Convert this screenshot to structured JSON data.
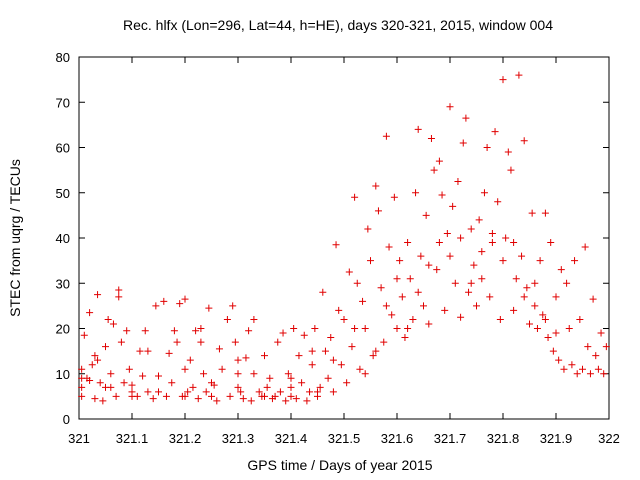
{
  "chart_data": {
    "type": "scatter",
    "title": "Rec. hlfx (Lon=296, Lat=44, h=HE), days 320-321, 2015, window 004",
    "xlabel": "GPS time / Days of year 2015",
    "ylabel": "STEC from uqrg / TECUs",
    "xlim": [
      321,
      322
    ],
    "ylim": [
      0,
      80
    ],
    "xticks": [
      "321",
      "321.1",
      "321.2",
      "321.3",
      "321.4",
      "321.5",
      "321.6",
      "321.7",
      "321.8",
      "321.9",
      "322"
    ],
    "yticks": [
      "0",
      "10",
      "20",
      "30",
      "40",
      "50",
      "60",
      "70",
      "80"
    ],
    "grid": false,
    "marker": "plus",
    "color": "#e00000",
    "series": [
      {
        "points": [
          [
            321.005,
            11
          ],
          [
            321.005,
            9
          ],
          [
            321.005,
            7
          ],
          [
            321.005,
            5
          ],
          [
            321.01,
            18.5
          ],
          [
            321.015,
            9
          ],
          [
            321.02,
            23.5
          ],
          [
            321.02,
            8.5
          ],
          [
            321.025,
            12
          ],
          [
            321.03,
            4.5
          ],
          [
            321.035,
            27.5
          ],
          [
            321.035,
            13
          ],
          [
            321.04,
            8
          ],
          [
            321.045,
            4
          ],
          [
            321.05,
            16
          ],
          [
            321.055,
            22
          ],
          [
            321.06,
            10
          ],
          [
            321.06,
            7
          ],
          [
            321.065,
            21
          ],
          [
            321.07,
            5
          ],
          [
            321.075,
            28.5
          ],
          [
            321.075,
            27
          ],
          [
            321.08,
            17
          ],
          [
            321.085,
            8
          ],
          [
            321.09,
            19.5
          ],
          [
            321.095,
            11
          ],
          [
            321.1,
            6
          ],
          [
            321.1,
            7.5
          ],
          [
            321.11,
            5
          ],
          [
            321.115,
            15
          ],
          [
            321.12,
            9.5
          ],
          [
            321.125,
            19.5
          ],
          [
            321.13,
            6
          ],
          [
            321.14,
            4.5
          ],
          [
            321.145,
            25
          ],
          [
            321.15,
            9.5
          ],
          [
            321.16,
            26
          ],
          [
            321.165,
            5
          ],
          [
            321.17,
            14.5
          ],
          [
            321.175,
            8
          ],
          [
            321.18,
            19.5
          ],
          [
            321.185,
            17
          ],
          [
            321.19,
            25.5
          ],
          [
            321.195,
            5
          ],
          [
            321.2,
            26.5
          ],
          [
            321.205,
            6
          ],
          [
            321.21,
            13
          ],
          [
            321.215,
            7
          ],
          [
            321.22,
            19.5
          ],
          [
            321.225,
            4.5
          ],
          [
            321.23,
            20
          ],
          [
            321.235,
            10
          ],
          [
            321.24,
            6
          ],
          [
            321.245,
            24.5
          ],
          [
            321.25,
            8
          ],
          [
            321.255,
            7.5
          ],
          [
            321.26,
            4
          ],
          [
            321.265,
            15.5
          ],
          [
            321.27,
            11
          ],
          [
            321.28,
            22
          ],
          [
            321.285,
            5
          ],
          [
            321.29,
            25
          ],
          [
            321.295,
            17
          ],
          [
            321.3,
            10
          ],
          [
            321.305,
            6
          ],
          [
            321.31,
            4.5
          ],
          [
            321.315,
            13.5
          ],
          [
            321.32,
            19.5
          ],
          [
            321.325,
            4
          ],
          [
            321.33,
            10
          ],
          [
            321.34,
            6
          ],
          [
            321.345,
            5
          ],
          [
            321.35,
            14
          ],
          [
            321.355,
            7
          ],
          [
            321.36,
            9
          ],
          [
            321.365,
            4.5
          ],
          [
            321.37,
            5
          ],
          [
            321.375,
            17
          ],
          [
            321.38,
            6
          ],
          [
            321.385,
            19
          ],
          [
            321.39,
            4
          ],
          [
            321.395,
            10
          ],
          [
            321.4,
            5
          ],
          [
            321.405,
            20
          ],
          [
            321.41,
            4.5
          ],
          [
            321.415,
            14
          ],
          [
            321.42,
            8
          ],
          [
            321.425,
            18.5
          ],
          [
            321.43,
            4
          ],
          [
            321.435,
            6
          ],
          [
            321.44,
            12
          ],
          [
            321.445,
            20
          ],
          [
            321.45,
            5
          ],
          [
            321.455,
            7
          ],
          [
            321.46,
            28
          ],
          [
            321.465,
            15
          ],
          [
            321.47,
            9
          ],
          [
            321.475,
            18
          ],
          [
            321.48,
            6
          ],
          [
            321.485,
            38.5
          ],
          [
            321.49,
            24
          ],
          [
            321.495,
            12
          ],
          [
            321.5,
            22
          ],
          [
            321.505,
            8
          ],
          [
            321.51,
            32.5
          ],
          [
            321.515,
            16
          ],
          [
            321.52,
            49
          ],
          [
            321.525,
            30
          ],
          [
            321.53,
            11
          ],
          [
            321.535,
            26
          ],
          [
            321.54,
            20
          ],
          [
            321.545,
            42
          ],
          [
            321.55,
            35
          ],
          [
            321.555,
            14
          ],
          [
            321.56,
            51.5
          ],
          [
            321.565,
            46
          ],
          [
            321.57,
            29
          ],
          [
            321.575,
            17
          ],
          [
            321.58,
            62.5
          ],
          [
            321.585,
            38
          ],
          [
            321.59,
            23
          ],
          [
            321.595,
            49
          ],
          [
            321.6,
            20
          ],
          [
            321.605,
            35
          ],
          [
            321.61,
            27
          ],
          [
            321.615,
            18
          ],
          [
            321.62,
            39
          ],
          [
            321.625,
            31
          ],
          [
            321.63,
            22
          ],
          [
            321.635,
            50
          ],
          [
            321.64,
            64
          ],
          [
            321.645,
            36
          ],
          [
            321.65,
            25
          ],
          [
            321.655,
            45
          ],
          [
            321.66,
            21
          ],
          [
            321.665,
            62
          ],
          [
            321.67,
            55
          ],
          [
            321.675,
            33
          ],
          [
            321.68,
            57
          ],
          [
            321.685,
            49.5
          ],
          [
            321.69,
            24
          ],
          [
            321.695,
            41
          ],
          [
            321.7,
            69
          ],
          [
            321.705,
            47
          ],
          [
            321.71,
            30
          ],
          [
            321.715,
            52.5
          ],
          [
            321.72,
            22.5
          ],
          [
            321.725,
            61
          ],
          [
            321.73,
            66.5
          ],
          [
            321.735,
            28
          ],
          [
            321.74,
            42
          ],
          [
            321.745,
            34
          ],
          [
            321.75,
            25
          ],
          [
            321.755,
            44
          ],
          [
            321.76,
            37
          ],
          [
            321.765,
            50
          ],
          [
            321.77,
            60
          ],
          [
            321.775,
            27
          ],
          [
            321.78,
            41
          ],
          [
            321.785,
            63.5
          ],
          [
            321.79,
            48
          ],
          [
            321.795,
            22
          ],
          [
            321.8,
            75
          ],
          [
            321.805,
            40
          ],
          [
            321.81,
            59
          ],
          [
            321.815,
            55
          ],
          [
            321.82,
            24
          ],
          [
            321.825,
            31
          ],
          [
            321.83,
            76
          ],
          [
            321.835,
            36
          ],
          [
            321.84,
            61.5
          ],
          [
            321.845,
            29
          ],
          [
            321.85,
            21
          ],
          [
            321.855,
            45.5
          ],
          [
            321.86,
            25
          ],
          [
            321.865,
            20
          ],
          [
            321.87,
            35
          ],
          [
            321.875,
            23
          ],
          [
            321.88,
            45.5
          ],
          [
            321.885,
            18
          ],
          [
            321.89,
            39
          ],
          [
            321.895,
            15
          ],
          [
            321.9,
            27
          ],
          [
            321.905,
            13
          ],
          [
            321.91,
            33
          ],
          [
            321.915,
            11
          ],
          [
            321.92,
            30
          ],
          [
            321.925,
            20
          ],
          [
            321.93,
            12
          ],
          [
            321.935,
            35
          ],
          [
            321.94,
            10
          ],
          [
            321.945,
            22
          ],
          [
            321.95,
            11
          ],
          [
            321.955,
            38
          ],
          [
            321.96,
            16
          ],
          [
            321.965,
            10
          ],
          [
            321.97,
            26.5
          ],
          [
            321.975,
            14
          ],
          [
            321.98,
            11
          ],
          [
            321.985,
            19
          ],
          [
            321.99,
            10
          ],
          [
            321.995,
            16
          ],
          [
            321.52,
            20
          ],
          [
            321.56,
            15
          ],
          [
            321.6,
            31
          ],
          [
            321.64,
            28
          ],
          [
            321.68,
            39
          ],
          [
            321.72,
            40
          ],
          [
            321.76,
            31
          ],
          [
            321.8,
            35
          ],
          [
            321.84,
            27
          ],
          [
            321.88,
            22
          ],
          [
            321.54,
            10
          ],
          [
            321.58,
            25
          ],
          [
            321.62,
            20
          ],
          [
            321.66,
            34
          ],
          [
            321.7,
            36
          ],
          [
            321.74,
            30
          ],
          [
            321.78,
            39
          ],
          [
            321.82,
            39
          ],
          [
            321.86,
            30
          ],
          [
            321.9,
            19
          ],
          [
            321.15,
            6
          ],
          [
            321.25,
            5
          ],
          [
            321.35,
            5
          ],
          [
            321.45,
            6
          ],
          [
            321.2,
            5
          ],
          [
            321.3,
            7
          ],
          [
            321.4,
            7
          ],
          [
            321.05,
            7
          ],
          [
            321.1,
            5
          ],
          [
            321.2,
            11
          ],
          [
            321.3,
            13
          ],
          [
            321.4,
            9
          ],
          [
            321.44,
            15
          ],
          [
            321.33,
            22
          ],
          [
            321.23,
            17
          ],
          [
            321.13,
            15
          ],
          [
            321.03,
            14
          ],
          [
            321.48,
            13
          ]
        ]
      }
    ]
  }
}
